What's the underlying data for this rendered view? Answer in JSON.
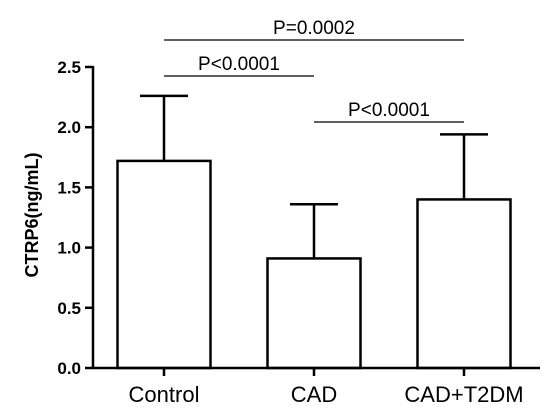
{
  "chart_data": {
    "type": "bar",
    "categories": [
      "Control",
      "CAD",
      "CAD+T2DM"
    ],
    "values": [
      1.72,
      0.91,
      1.4
    ],
    "error_upper": [
      2.26,
      1.36,
      1.94
    ],
    "ylabel": "CTRP6(ng/mL)",
    "xlabel": "",
    "title": "",
    "ylim": [
      0,
      2.5
    ],
    "yticks": [
      {
        "value": 0.0,
        "label": "0.0"
      },
      {
        "value": 0.5,
        "label": "0.5"
      },
      {
        "value": 1.0,
        "label": "1.0"
      },
      {
        "value": 1.5,
        "label": "1.5"
      },
      {
        "value": 2.0,
        "label": "2.0"
      },
      {
        "value": 2.5,
        "label": "2.5"
      }
    ],
    "bar_fill": "#ffffff",
    "bar_edge": "#000000",
    "grid": false,
    "legend": "none",
    "annotations": [
      {
        "from": 0,
        "to": 2,
        "label": "P=0.0002"
      },
      {
        "from": 0,
        "to": 1,
        "label": "P<0.0001"
      },
      {
        "from": 1,
        "to": 2,
        "label": "P<0.0001"
      }
    ]
  }
}
